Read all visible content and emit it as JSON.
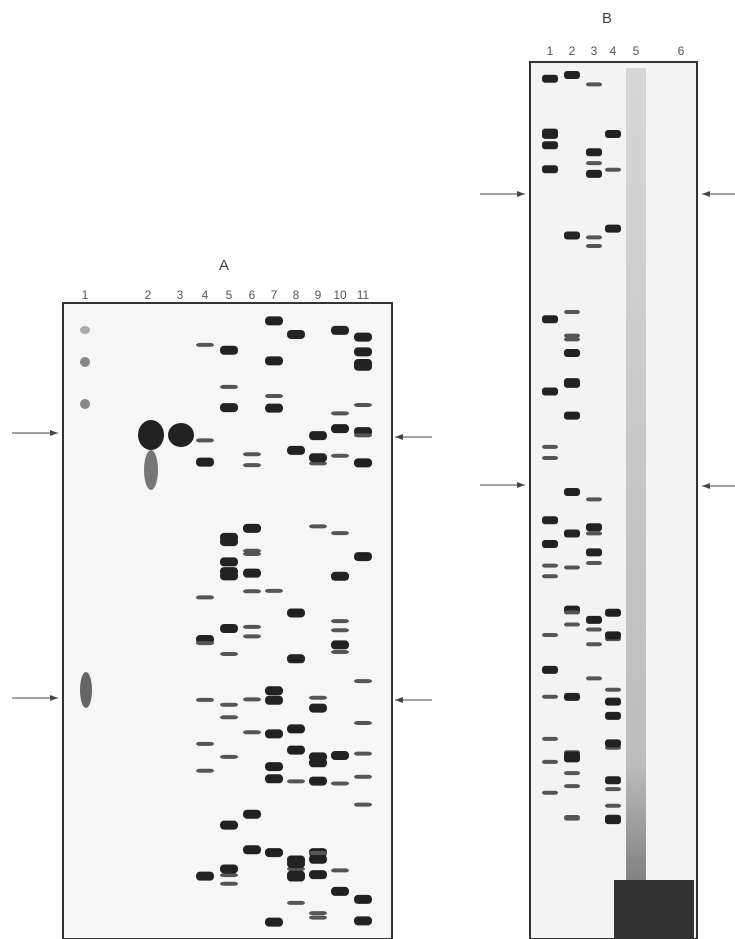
{
  "panel_a": {
    "label": "A",
    "lanes": [
      "1",
      "2",
      "3",
      "4",
      "5",
      "6",
      "7",
      "8",
      "9",
      "10",
      "11"
    ]
  },
  "panel_b": {
    "label": "B",
    "lanes": [
      "1",
      "2",
      "3",
      "4",
      "5",
      "6"
    ]
  }
}
